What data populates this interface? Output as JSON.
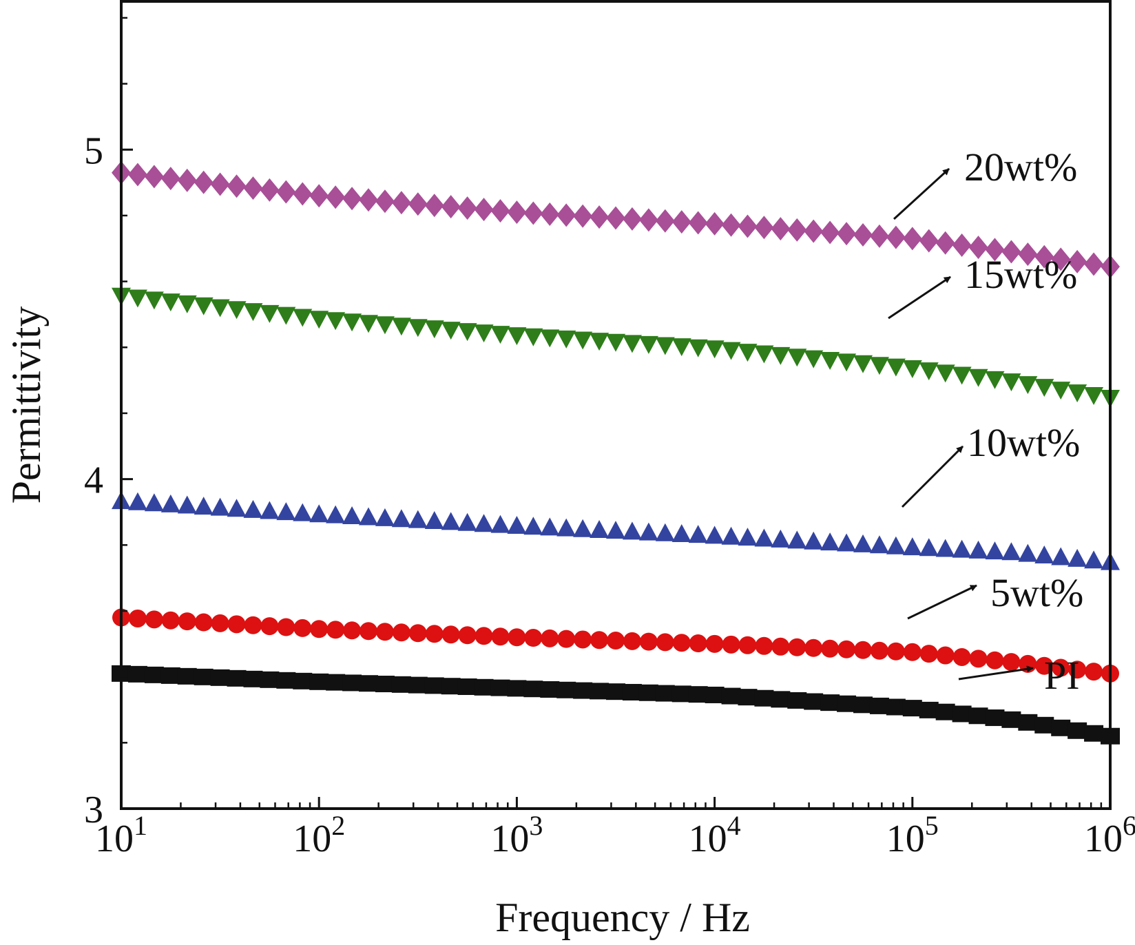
{
  "chart_data": {
    "type": "scatter",
    "title": "",
    "xlabel": "Frequency / Hz",
    "ylabel": "Permittivity",
    "xscale": "log",
    "yscale": "linear",
    "xlim": [
      10,
      1000000
    ],
    "ylim": [
      3,
      5.45
    ],
    "x_ticks": [
      {
        "value": 10,
        "base": "10",
        "exp": "1"
      },
      {
        "value": 100,
        "base": "10",
        "exp": "2"
      },
      {
        "value": 1000,
        "base": "10",
        "exp": "3"
      },
      {
        "value": 10000,
        "base": "10",
        "exp": "4"
      },
      {
        "value": 100000,
        "base": "10",
        "exp": "5"
      },
      {
        "value": 1000000,
        "base": "10",
        "exp": "6"
      }
    ],
    "y_ticks": [
      {
        "value": 3,
        "label": "3"
      },
      {
        "value": 4,
        "label": "4"
      },
      {
        "value": 5,
        "label": "5"
      }
    ],
    "y_minor_step": 0.2,
    "grid": false,
    "legend": "none (curves labelled by arrow annotations at right)",
    "points_per_decade": 12,
    "series": [
      {
        "name": "PI",
        "marker": "square",
        "color": "#111111",
        "x": [
          10,
          100,
          1000,
          10000,
          100000,
          316228,
          1000000
        ],
        "y": [
          3.41,
          3.385,
          3.365,
          3.345,
          3.305,
          3.27,
          3.22
        ]
      },
      {
        "name": "5wt%",
        "marker": "circle",
        "color": "#dd1111",
        "x": [
          10,
          100,
          1000,
          10000,
          100000,
          316228,
          1000000
        ],
        "y": [
          3.58,
          3.545,
          3.52,
          3.5,
          3.475,
          3.445,
          3.41
        ]
      },
      {
        "name": "10wt%",
        "marker": "triangle-up",
        "color": "#3344a0",
        "x": [
          10,
          100,
          1000,
          10000,
          100000,
          316228,
          1000000
        ],
        "y": [
          3.93,
          3.89,
          3.855,
          3.825,
          3.79,
          3.775,
          3.745
        ]
      },
      {
        "name": "15wt%",
        "marker": "triangle-down",
        "color": "#2e7d1a",
        "x": [
          10,
          100,
          1000,
          10000,
          100000,
          316228,
          1000000
        ],
        "y": [
          4.56,
          4.49,
          4.44,
          4.4,
          4.34,
          4.3,
          4.25
        ]
      },
      {
        "name": "20wt%",
        "marker": "diamond",
        "color": "#a84f97",
        "x": [
          10,
          100,
          1000,
          10000,
          100000,
          316228,
          1000000
        ],
        "y": [
          4.93,
          4.86,
          4.81,
          4.775,
          4.73,
          4.69,
          4.645
        ]
      }
    ],
    "annotations": [
      {
        "text": "20wt%",
        "series": "20wt%"
      },
      {
        "text": "15wt%",
        "series": "15wt%"
      },
      {
        "text": "10wt%",
        "series": "10wt%"
      },
      {
        "text": "5wt%",
        "series": "5wt%"
      },
      {
        "text": "PI",
        "series": "PI"
      }
    ]
  }
}
